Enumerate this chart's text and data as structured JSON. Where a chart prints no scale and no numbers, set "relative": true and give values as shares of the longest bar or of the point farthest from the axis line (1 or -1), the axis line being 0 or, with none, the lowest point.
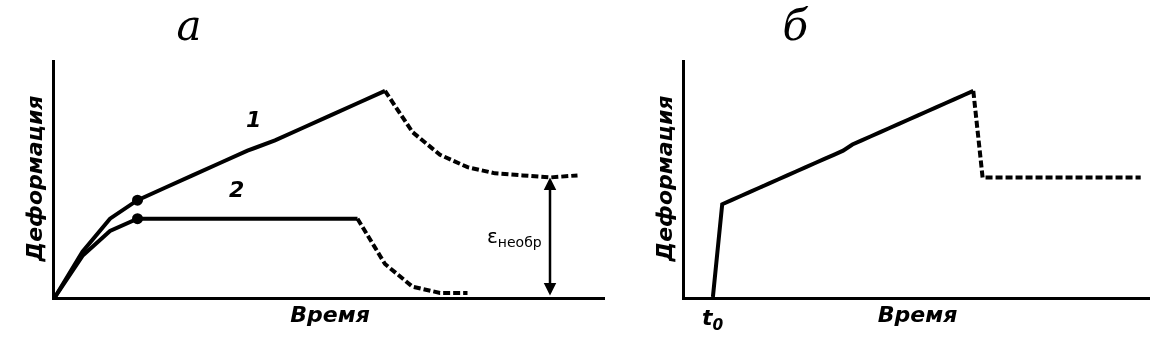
{
  "chart_data": [
    {
      "type": "line",
      "title": "а",
      "xlabel": "Время",
      "ylabel": "Деформация",
      "relative": true,
      "categories": [
        null,
        null,
        null,
        null,
        null,
        null,
        null,
        null,
        null,
        null,
        null,
        null,
        null,
        null,
        null,
        null,
        null,
        null,
        null,
        null
      ],
      "series": [
        {
          "name": "1",
          "color": "#000000",
          "line_style": "solid",
          "values": [
            0,
            0.22,
            0.38,
            0.47,
            0.53,
            0.59,
            0.65,
            0.71,
            0.76,
            0.82,
            0.88,
            0.94,
            1.0,
            null,
            null,
            null,
            null,
            null,
            null,
            null
          ]
        },
        {
          "color": "#000000",
          "line_style": "dashed",
          "values": [
            null,
            null,
            null,
            null,
            null,
            null,
            null,
            null,
            null,
            null,
            null,
            null,
            1.0,
            0.8,
            0.69,
            0.63,
            0.6,
            0.59,
            0.58,
            0.59
          ]
        },
        {
          "name": "2",
          "color": "#000000",
          "line_style": "solid",
          "values": [
            0,
            0.2,
            0.32,
            0.38,
            0.38,
            0.38,
            0.38,
            0.38,
            0.38,
            0.38,
            0.38,
            0.38,
            null,
            null,
            null,
            null,
            null,
            null,
            null,
            null
          ]
        },
        {
          "color": "#000000",
          "line_style": "dashed",
          "values": [
            null,
            null,
            null,
            null,
            null,
            null,
            null,
            null,
            null,
            null,
            null,
            0.38,
            0.16,
            0.05,
            0.02,
            0.02,
            null,
            null,
            null,
            null
          ]
        },
        {
          "marker": "circle",
          "color": "#000000",
          "values": [
            null,
            null,
            null,
            0.47,
            null,
            null,
            null,
            null,
            null,
            null,
            null,
            null,
            null,
            null,
            null,
            null,
            null,
            null,
            null,
            null
          ]
        },
        {
          "marker": "circle",
          "color": "#000000",
          "values": [
            null,
            null,
            null,
            0.38,
            null,
            null,
            null,
            null,
            null,
            null,
            null,
            null,
            null,
            null,
            null,
            null,
            null,
            null,
            null,
            null
          ]
        }
      ],
      "annotations": [
        "ε$_{необр}$"
      ]
    },
    {
      "type": "line",
      "title": "б",
      "xlabel": "Время",
      "ylabel": "Деформация",
      "relative": true,
      "annotations": [
        "t$_{0}$"
      ],
      "categories": [
        null,
        null,
        null,
        null,
        null,
        null,
        null,
        null,
        null,
        null,
        null,
        null,
        null,
        null,
        null,
        null,
        null,
        null,
        null,
        null,
        null,
        null,
        null,
        null,
        null,
        null,
        null,
        null,
        null,
        null,
        null,
        null,
        null,
        null,
        null,
        null,
        null,
        null,
        null,
        null,
        null,
        null,
        null,
        null,
        null,
        null,
        null,
        null,
        null,
        null
      ],
      "series": [
        {
          "color": "#000000",
          "line_style": "solid",
          "values": [
            null,
            null,
            null,
            0,
            0.45,
            0.47,
            0.49,
            0.51,
            0.53,
            0.55,
            0.57,
            0.59,
            0.61,
            0.63,
            0.65,
            0.67,
            0.69,
            0.71,
            0.74,
            0.76,
            0.78,
            0.8,
            0.82,
            0.84,
            0.86,
            0.88,
            0.9,
            0.92,
            0.94,
            0.96,
            0.98,
            1.0,
            null,
            null,
            null,
            null,
            null,
            null,
            null,
            null,
            null,
            null,
            null,
            null,
            null,
            null,
            null,
            null,
            null,
            null
          ]
        },
        {
          "color": "#000000",
          "line_style": "dashed",
          "values": [
            null,
            null,
            null,
            null,
            null,
            null,
            null,
            null,
            null,
            null,
            null,
            null,
            null,
            null,
            null,
            null,
            null,
            null,
            null,
            null,
            null,
            null,
            null,
            null,
            null,
            null,
            null,
            null,
            null,
            null,
            null,
            1.0,
            0.58,
            0.58,
            0.58,
            0.58,
            0.58,
            0.58,
            0.58,
            0.58,
            0.58,
            0.58,
            0.58,
            0.58,
            0.58,
            0.58,
            0.58,
            0.58,
            0.58,
            0.58
          ]
        }
      ]
    }
  ]
}
